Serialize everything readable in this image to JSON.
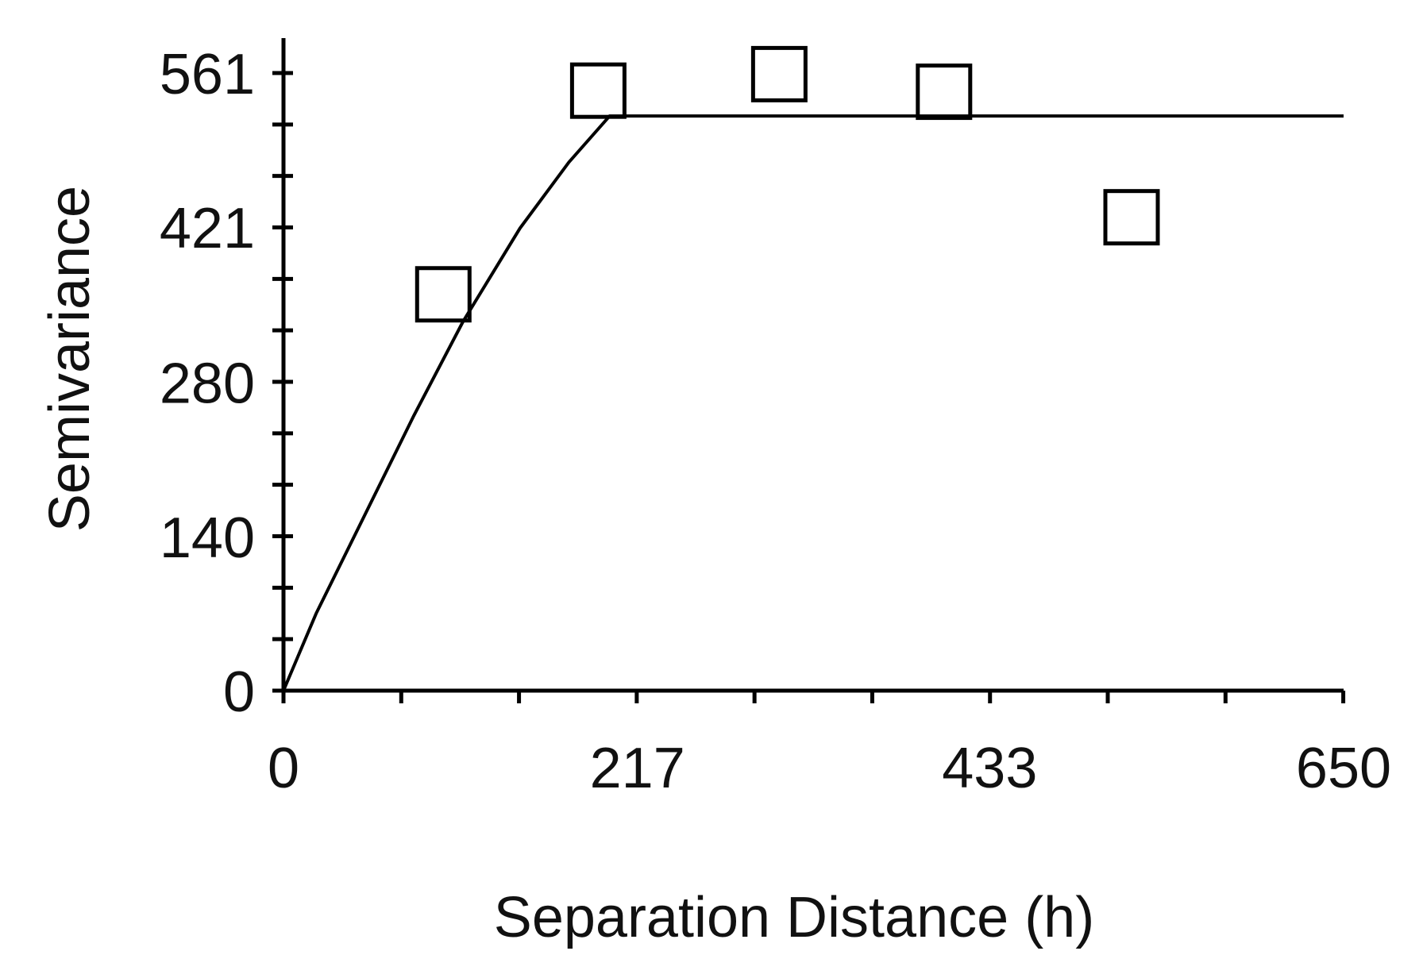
{
  "chart_data": {
    "type": "scatter",
    "title": "",
    "xlabel": "Separation Distance (h)",
    "ylabel": "Semivariance",
    "xlim": [
      0,
      650
    ],
    "ylim": [
      0,
      561
    ],
    "x_ticks": [
      0,
      217,
      433,
      650
    ],
    "y_ticks": [
      0,
      140,
      280,
      421,
      561
    ],
    "x_minor_step": 72.2,
    "y_minor_step": 46.75,
    "grid": false,
    "legend": "none",
    "colors": {
      "axis": "#000000",
      "text": "#111111",
      "marker": "#000000"
    },
    "series": [
      {
        "kind": "points",
        "marker": "open-square",
        "x": [
          98,
          193,
          304,
          405,
          520
        ],
        "y": [
          360,
          545,
          560,
          544,
          430
        ]
      },
      {
        "kind": "model-line",
        "x": [
          0,
          20,
          50,
          80,
          110,
          145,
          175,
          200,
          650
        ],
        "y": [
          0,
          70,
          160,
          250,
          335,
          420,
          480,
          522,
          522
        ]
      }
    ]
  }
}
